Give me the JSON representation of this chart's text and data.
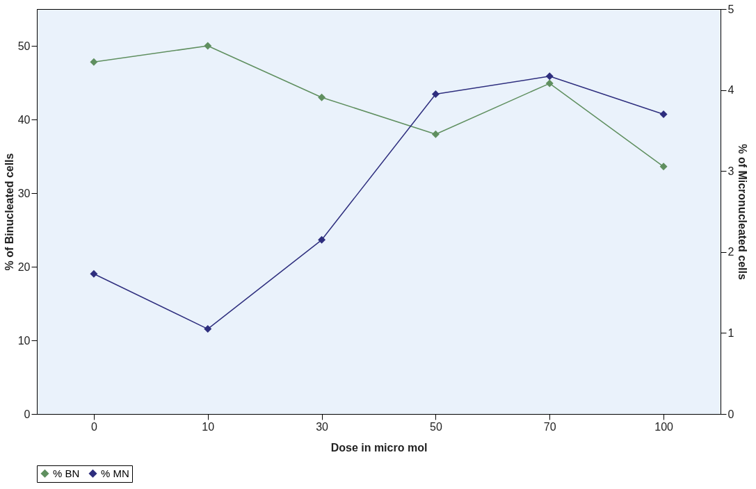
{
  "chart_data": {
    "type": "line",
    "xlabel": "Dose in micro mol",
    "ylabel": "% of Binucleated cells",
    "y2label": "% of Micronucleated cells",
    "categories": [
      "0",
      "10",
      "30",
      "50",
      "70",
      "100"
    ],
    "series": [
      {
        "name": "% BN",
        "color": "#5f8f5f",
        "values": [
          47.8,
          50.0,
          43.0,
          38.0,
          44.9,
          33.6
        ]
      },
      {
        "name": "% MN",
        "color": "#2e2e7e",
        "axis": "y2",
        "values": [
          1.73,
          1.05,
          2.15,
          3.95,
          4.17,
          3.7
        ]
      }
    ],
    "ylim": [
      0,
      55
    ],
    "yticks": [
      0,
      10,
      20,
      30,
      40,
      50
    ],
    "y2lim": [
      0,
      5
    ],
    "y2ticks": [
      0,
      1,
      2,
      3,
      4,
      5
    ],
    "marker": "diamond",
    "line_style": "solid",
    "grid": false,
    "legend": "bottom left"
  }
}
